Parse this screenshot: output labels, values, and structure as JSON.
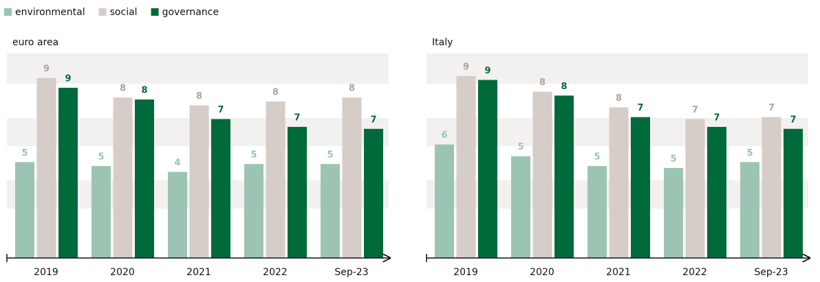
{
  "chart_data": [
    {
      "type": "bar",
      "title": "euro area",
      "categories": [
        "2019",
        "2020",
        "2021",
        "2022",
        "Sep-23"
      ],
      "ylim": [
        0,
        10.45
      ],
      "series": [
        {
          "name": "environmental",
          "color": "#9cc4b2",
          "values": [
            4.9,
            4.7,
            4.4,
            4.8,
            4.8
          ],
          "value_labels": [
            "5",
            "5",
            "4",
            "5",
            "5"
          ]
        },
        {
          "name": "social",
          "color": "#d6ccc8",
          "values": [
            9.2,
            8.2,
            7.8,
            8.0,
            8.2
          ],
          "value_labels": [
            "9",
            "8",
            "8",
            "8",
            "8"
          ]
        },
        {
          "name": "governance",
          "color": "#006a3a",
          "values": [
            8.7,
            8.1,
            7.1,
            6.7,
            6.6
          ],
          "value_labels": [
            "9",
            "8",
            "7",
            "7",
            "7"
          ]
        }
      ]
    },
    {
      "type": "bar",
      "title": "Italy",
      "categories": [
        "2019",
        "2020",
        "2021",
        "2022",
        "Sep-23"
      ],
      "ylim": [
        0,
        10.45
      ],
      "series": [
        {
          "name": "environmental",
          "color": "#9cc4b2",
          "values": [
            5.8,
            5.2,
            4.7,
            4.6,
            4.9
          ],
          "value_labels": [
            "6",
            "5",
            "5",
            "5",
            "5"
          ]
        },
        {
          "name": "social",
          "color": "#d6ccc8",
          "values": [
            9.3,
            8.5,
            7.7,
            7.1,
            7.2
          ],
          "value_labels": [
            "9",
            "8",
            "8",
            "7",
            "7"
          ]
        },
        {
          "name": "governance",
          "color": "#006a3a",
          "values": [
            9.1,
            8.3,
            7.2,
            6.7,
            6.6
          ],
          "value_labels": [
            "9",
            "8",
            "7",
            "7",
            "7"
          ]
        }
      ]
    }
  ]
}
